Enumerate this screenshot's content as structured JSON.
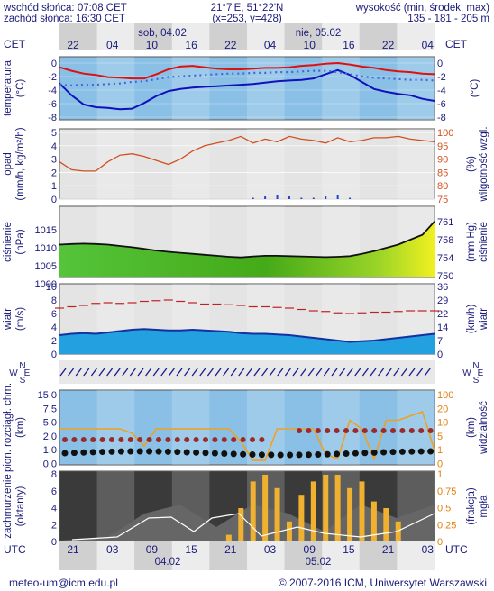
{
  "header": {
    "sunrise": "wschód słońca: 07:08 CET",
    "sunset": "zachód słońca: 16:30 CET",
    "coords": "21°7'E, 51°22'N",
    "grid_pos": "(x=253, y=428)",
    "elev_title": "wysokość (min, środek, max)",
    "elev_values": "135 - 181 - 205 m"
  },
  "top_axis": {
    "tz_left": "CET",
    "tz_right": "CET",
    "day_labels": [
      "sob, 04.02",
      "nie, 05.02"
    ],
    "hours": [
      "22",
      "04",
      "10",
      "16",
      "22",
      "04",
      "10",
      "16",
      "22",
      "04"
    ]
  },
  "bottom_axis": {
    "tz_left": "UTC",
    "tz_right": "UTC",
    "hours": [
      "21",
      "03",
      "09",
      "15",
      "21",
      "03",
      "09",
      "15",
      "21",
      "03"
    ],
    "dates": [
      "04.02",
      "05.02"
    ]
  },
  "panel_labels": {
    "temp_left": [
      "temperatura",
      "(°C)"
    ],
    "temp_right": "(°C)",
    "precip_left": [
      "opad",
      "(mm/h, kg/m²/h)"
    ],
    "precip_right": [
      "(%)",
      "wilgotność wzgl."
    ],
    "press_left": [
      "ciśnienie",
      "(hPa)"
    ],
    "press_right": [
      "(mm Hg)",
      "ciśnienie"
    ],
    "wind_left": [
      "wiatr",
      "(m/s)"
    ],
    "wind_right": [
      "(km/h)",
      "wiatr"
    ],
    "clouds_left": [
      "pion. rozciągł. chm.",
      "(km)"
    ],
    "clouds_right": [
      "(km)",
      "widzialność"
    ],
    "cover_left": [
      "zachmurzenie",
      "(oktanty)"
    ],
    "cover_right": [
      "(frakcja)",
      "mgła"
    ]
  },
  "footer": {
    "email": "meteo-um@icm.edu.pl",
    "copyright": "© 2007-2016 ICM, Uniwersytet Warszawski"
  },
  "colors": {
    "temp_line": "#dd1111",
    "dew_line": "#1111bb",
    "humidity_line": "#d05020",
    "pressure_fill": "#66cc22",
    "wind_fill": "#22a0e0",
    "visibility_line": "#f0a020",
    "fog_bars": "#f0b030"
  },
  "chart_data": [
    {
      "type": "line",
      "title": "temperatura",
      "ylim": [
        -8,
        1
      ],
      "y_ticks": [
        "0",
        "-2",
        "-4",
        "-6",
        "-8"
      ],
      "right_ticks": [
        "0",
        "-2",
        "-4",
        "-6",
        "-8"
      ],
      "series": [
        {
          "values": [
            -0.5,
            -1.0,
            -1.4,
            -1.6,
            -1.9,
            -2.0,
            -2.1,
            -2.1,
            -1.5,
            -0.8,
            -0.4,
            -0.3,
            -0.5,
            -0.7,
            -0.8,
            -0.8,
            -0.7,
            -0.6,
            -0.6,
            -0.5,
            -0.3,
            -0.2,
            0.0,
            0.1,
            -0.1,
            -0.4,
            -0.6,
            -0.9,
            -1.1,
            -1.2,
            -1.4,
            -1.5
          ]
        },
        {
          "values": [
            -3.0,
            -3.1,
            -3.0,
            -3.0,
            -2.9,
            -2.8,
            -2.6,
            -2.5,
            -2.2,
            -1.9,
            -1.8,
            -1.7,
            -1.6,
            -1.5,
            -1.4,
            -1.4,
            -1.3,
            -1.3,
            -1.2,
            -1.2,
            -1.1,
            -1.0,
            -1.0,
            -1.2,
            -1.5,
            -1.8,
            -2.0,
            -2.1,
            -2.2,
            -2.3,
            -2.3,
            -2.4
          ]
        },
        {
          "values": [
            -2.8,
            -4.5,
            -5.8,
            -6.2,
            -6.3,
            -6.5,
            -6.4,
            -5.6,
            -4.6,
            -3.9,
            -3.6,
            -3.4,
            -3.3,
            -3.2,
            -3.1,
            -3.0,
            -2.9,
            -2.7,
            -2.5,
            -2.4,
            -2.3,
            -2.1,
            -1.5,
            -0.9,
            -1.6,
            -2.6,
            -3.6,
            -4.0,
            -4.3,
            -4.5,
            -5.0,
            -5.3
          ]
        }
      ]
    },
    {
      "type": "line",
      "title": "opad",
      "ylim": [
        0,
        5
      ],
      "y_ticks": [
        "5",
        "4",
        "3",
        "2",
        "1",
        "0"
      ],
      "right_ticks": [
        "100",
        "95",
        "90",
        "85",
        "80",
        "75"
      ],
      "series": [
        {
          "values": [
            89.0,
            86.0,
            85.5,
            85.5,
            89.0,
            91.5,
            92.0,
            91.0,
            89.5,
            88.0,
            90.0,
            93.0,
            95.0,
            96.0,
            97.0,
            98.5,
            96.0,
            97.5,
            96.5,
            98.5,
            97.5,
            97.0,
            96.0,
            98.0,
            96.5,
            97.0,
            98.0,
            98.0,
            98.5,
            97.5,
            97.0,
            96.5
          ]
        },
        {
          "values": [
            0,
            0,
            0,
            0,
            0,
            0,
            0,
            0,
            0,
            0,
            0,
            0,
            0,
            0,
            0,
            0,
            0.1,
            0.2,
            0.3,
            0.2,
            0.1,
            0.1,
            0.2,
            0.3,
            0.1,
            0,
            0,
            0,
            0,
            0,
            0,
            0
          ]
        }
      ]
    },
    {
      "type": "area",
      "title": "ciśnienie",
      "ylim": [
        1000,
        1020
      ],
      "y_ticks": [
        "1015",
        "1010",
        "1005",
        "1000"
      ],
      "right_ticks": [
        "761",
        "758",
        "754",
        "750"
      ],
      "series": [
        {
          "values": [
            1010.0,
            1010.2,
            1010.3,
            1010.2,
            1010.0,
            1009.6,
            1009.2,
            1008.7,
            1008.2,
            1007.8,
            1007.5,
            1007.2,
            1006.9,
            1006.6,
            1006.3,
            1006.1,
            1006.4,
            1006.6,
            1006.6,
            1006.5,
            1006.4,
            1006.3,
            1006.2,
            1006.3,
            1006.5,
            1007.2,
            1008.0,
            1009.0,
            1010.0,
            1011.5,
            1013.0,
            1017.0
          ]
        }
      ]
    },
    {
      "type": "area",
      "title": "wiatr",
      "ylim": [
        0,
        10
      ],
      "y_ticks": [
        "10",
        "8",
        "6",
        "4",
        "2",
        "0"
      ],
      "right_ticks": [
        "36",
        "29",
        "22",
        "14",
        "7",
        "0"
      ],
      "series": [
        {
          "values": [
            2.8,
            3.0,
            3.1,
            3.0,
            3.2,
            3.4,
            3.6,
            3.7,
            3.6,
            3.5,
            3.5,
            3.6,
            3.5,
            3.4,
            3.3,
            3.1,
            3.0,
            3.0,
            2.9,
            2.8,
            2.6,
            2.4,
            2.2,
            2.0,
            1.8,
            1.9,
            2.0,
            2.2,
            2.4,
            2.6,
            2.8,
            3.0
          ]
        },
        {
          "values": [
            6.8,
            7.0,
            7.2,
            7.5,
            7.6,
            7.5,
            7.6,
            7.8,
            7.9,
            8.0,
            7.8,
            7.6,
            7.4,
            7.4,
            7.3,
            7.2,
            7.0,
            7.0,
            6.9,
            6.8,
            6.6,
            6.4,
            6.3,
            6.1,
            6.0,
            6.1,
            6.2,
            6.2,
            6.3,
            6.4,
            6.4,
            6.4
          ]
        }
      ]
    },
    {
      "type": "line",
      "title": "pion. rozciągł. chm.",
      "ylim": [
        0,
        15
      ],
      "y_ticks": [
        "15.0",
        "7.5",
        "5.0",
        "2.0",
        "1.0",
        "0.0"
      ],
      "right_ticks": [
        "100",
        "20",
        "10",
        "5",
        "1",
        "0"
      ],
      "series": [
        {
          "values": [
            4.0,
            4.0,
            4.0,
            4.0,
            4.0,
            4.0,
            3.5,
            2.0,
            4.0,
            4.0,
            4.0,
            4.0,
            4.0,
            4.0,
            4.0,
            2.5,
            0.3,
            0.3,
            4.0,
            4.0,
            4.0,
            4.0,
            1.0,
            0.5,
            5.0,
            4.0,
            0.5,
            5.0,
            5.0,
            5.5,
            6.0,
            1.5
          ]
        }
      ]
    },
    {
      "type": "bar",
      "title": "zachmurzenie",
      "ylim": [
        0,
        8
      ],
      "y_ticks": [
        "8",
        "6",
        "4",
        "2",
        "0"
      ],
      "right_ticks": [
        "1",
        "0.75",
        "0.5",
        "0.25",
        "0"
      ],
      "series": [
        {
          "values": [
            0,
            0,
            0,
            0,
            0,
            0,
            0,
            0,
            0,
            0,
            0,
            0,
            0,
            0,
            0.1,
            0.5,
            0.9,
            1.0,
            0.8,
            0.3,
            0.7,
            0.9,
            1.0,
            1.0,
            0.8,
            0.9,
            0.6,
            0.5,
            0.3,
            0,
            0,
            0
          ]
        }
      ]
    }
  ]
}
